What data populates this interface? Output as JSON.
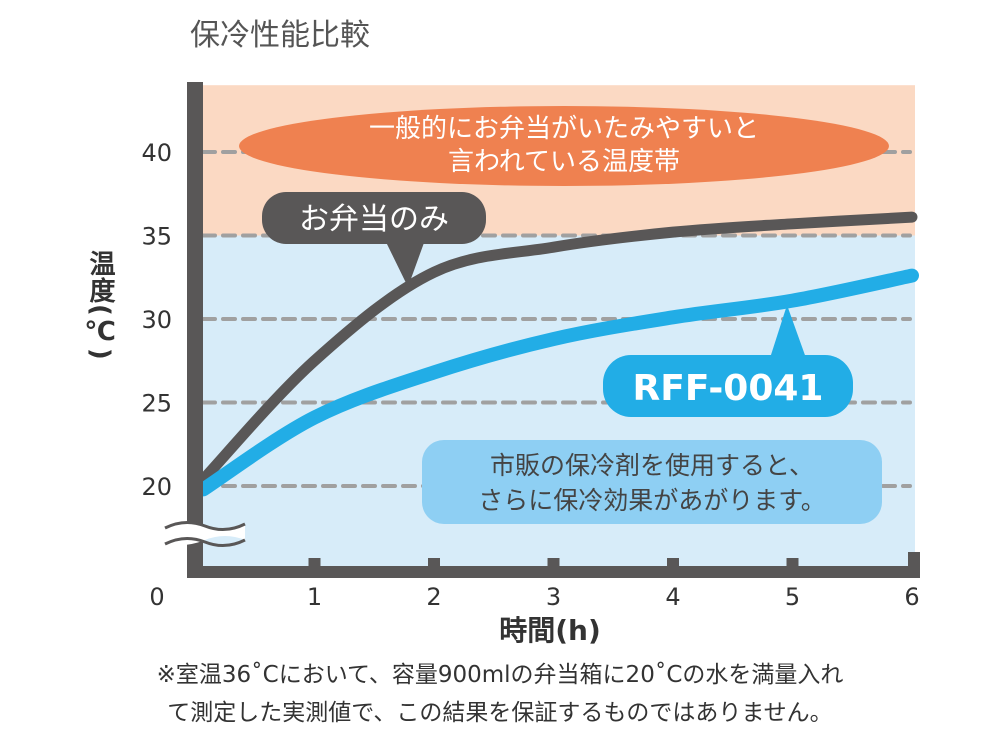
{
  "chart_data": {
    "type": "line",
    "title": "保冷性能比較",
    "xlabel": "時間(h)",
    "ylabel": "温度(℃)",
    "xlim": [
      0,
      6
    ],
    "ylim": [
      15,
      44
    ],
    "x_ticks": [
      "0",
      "1",
      "2",
      "3",
      "4",
      "5",
      "6"
    ],
    "y_ticks": [
      "20",
      "25",
      "30",
      "35",
      "40"
    ],
    "grid": true,
    "axis_break": true,
    "bands": [
      {
        "range": [
          35,
          44
        ],
        "color": "#fbd9c3",
        "label": "一般的にお弁当がいたみやすいと\n言われている温度帯",
        "label_color": "#ef8150"
      },
      {
        "range": [
          15,
          35
        ],
        "color": "#d7ecf9"
      }
    ],
    "series": [
      {
        "name": "お弁当のみ",
        "color": "#595757",
        "x": [
          0.07,
          1,
          2,
          3,
          4,
          5,
          6
        ],
        "values": [
          20.4,
          27.5,
          32.8,
          34.3,
          35.2,
          35.7,
          36.1
        ]
      },
      {
        "name": "RFF-0041",
        "color": "#22ade6",
        "x": [
          0.07,
          1,
          2,
          3,
          4,
          5,
          6
        ],
        "values": [
          19.8,
          24.1,
          26.8,
          28.8,
          30.1,
          31.1,
          32.6
        ]
      }
    ],
    "annotations": [
      "市販の保冷剤を使用すると、\nさらに保冷効果があがります。"
    ]
  },
  "footnote": [
    "※室温36˚Cにおいて、容量900mlの弁当箱に20˚Cの水を満量入れ",
    "て測定した実測値で、この結果を保証するものではありません。"
  ]
}
